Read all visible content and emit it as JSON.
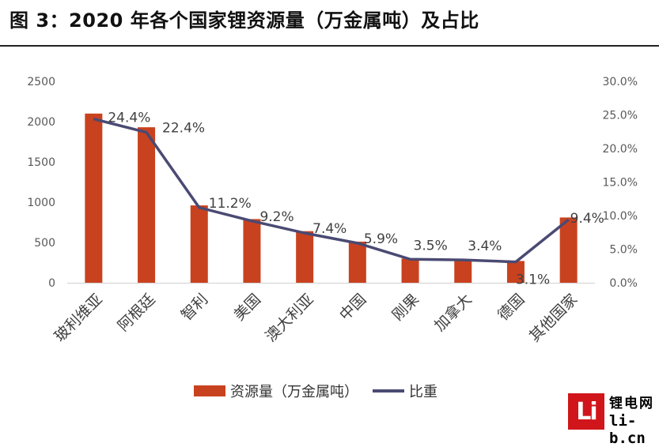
{
  "title": "图 3：2020 年各个国家锂资源量（万金属吨）及占比",
  "chart_data": {
    "type": "bar",
    "categories": [
      "玻利维亚",
      "阿根廷",
      "智利",
      "美国",
      "澳大利亚",
      "中国",
      "刚果",
      "加拿大",
      "德国",
      "其他国家"
    ],
    "series": [
      {
        "name": "资源量（万金属吨）",
        "type": "bar",
        "axis": "left",
        "color": "#c9421f",
        "values": [
          2100,
          1930,
          960,
          790,
          640,
          510,
          300,
          290,
          270,
          810
        ]
      },
      {
        "name": "比重",
        "type": "line",
        "axis": "right",
        "color": "#4a4a73",
        "values": [
          24.4,
          22.4,
          11.2,
          9.2,
          7.4,
          5.9,
          3.5,
          3.4,
          3.1,
          9.4
        ],
        "labels": [
          "24.4%",
          "22.4%",
          "11.2%",
          "9.2%",
          "7.4%",
          "5.9%",
          "3.5%",
          "3.4%",
          "3.1%",
          "9.4%"
        ]
      }
    ],
    "y_left": {
      "min": 0,
      "max": 2500,
      "ticks": [
        "0",
        "500",
        "1000",
        "1500",
        "2000",
        "2500"
      ]
    },
    "y_right": {
      "min": 0,
      "max": 30,
      "ticks": [
        "0.0%",
        "5.0%",
        "10.0%",
        "15.0%",
        "20.0%",
        "25.0%",
        "30.0%"
      ]
    },
    "legend_position": "bottom",
    "grid": false
  },
  "logo": {
    "text_line1": "锂电网",
    "text_line2": "li-b.cn",
    "mark": "Li"
  }
}
